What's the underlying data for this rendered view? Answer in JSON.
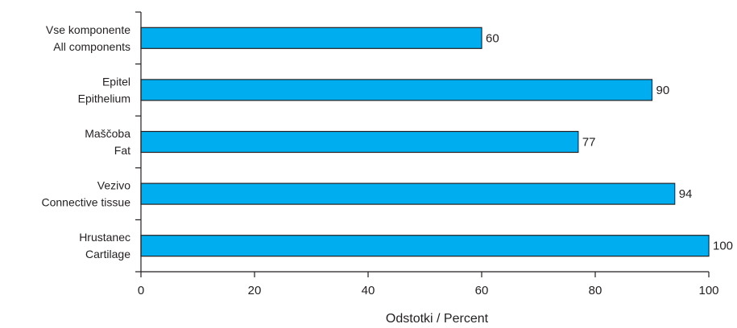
{
  "chart_data": {
    "type": "bar",
    "orientation": "horizontal",
    "categories": [
      [
        "Vse komponente",
        "All components"
      ],
      [
        "Epitel",
        "Epithelium"
      ],
      [
        "Maščoba",
        "Fat"
      ],
      [
        "Vezivo",
        "Connective tissue"
      ],
      [
        "Hrustanec",
        "Cartilage"
      ]
    ],
    "values": [
      60,
      90,
      77,
      94,
      100
    ],
    "xlabel": "Odstotki / Percent",
    "ylabel": "",
    "title": "",
    "xlim": [
      0,
      100
    ],
    "xticks": [
      0,
      20,
      40,
      60,
      80,
      100
    ],
    "grid": false,
    "legend": "none",
    "bar_color": "#00aeef",
    "bar_edge_color": "#231f20"
  }
}
